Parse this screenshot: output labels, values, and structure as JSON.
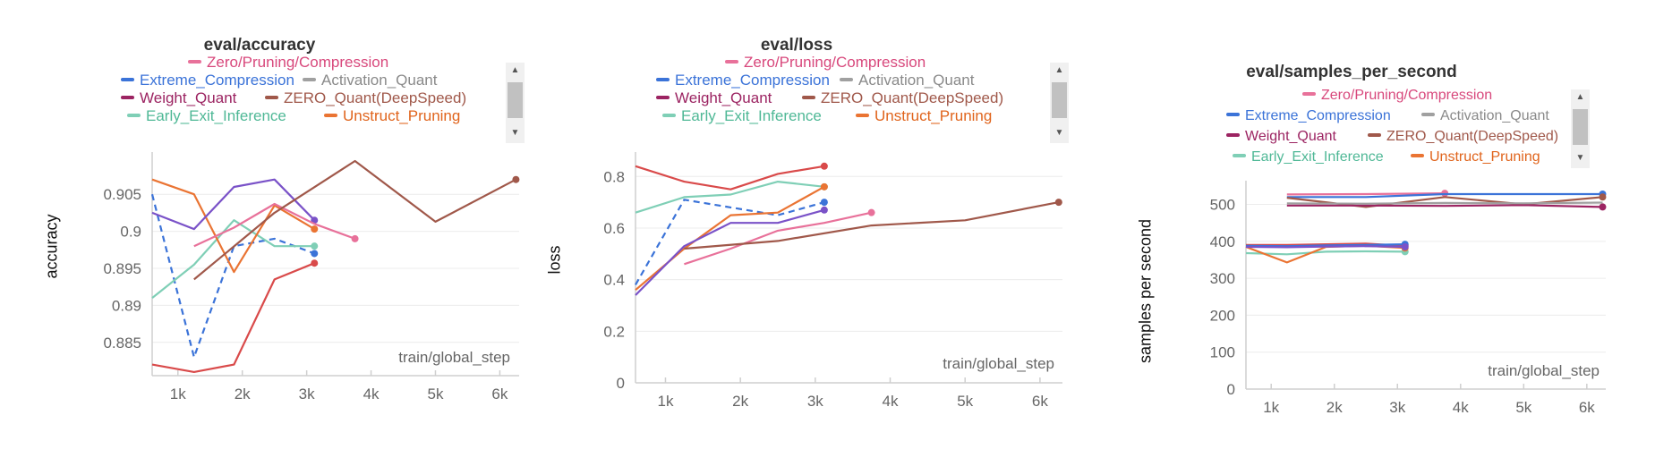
{
  "colors": {
    "Zero/Pruning/Compression": "#e8719a",
    "Extreme_Compression": "#3b73d8",
    "Activation_Quant": "#a0a0a0",
    "Weight_Quant": "#9c2462",
    "ZERO_Quant(DeepSpeed)": "#a0584a",
    "Early_Exit_Inference": "#7fcfb6",
    "Unstruct_Pruning": "#ea7433",
    "extra_red": "#d94a4a",
    "extra_purple": "#7a52c8"
  },
  "legend_series": [
    "Zero/Pruning/Compression",
    "Extreme_Compression",
    "Activation_Quant",
    "Weight_Quant",
    "ZERO_Quant(DeepSpeed)",
    "Early_Exit_Inference",
    "Unstruct_Pruning"
  ],
  "chart_data": [
    {
      "type": "line",
      "title": "eval/accuracy",
      "xlabel": "train/global_step",
      "ylabel": "accuracy",
      "xlim": [
        600,
        6300
      ],
      "ylim": [
        0.8805,
        0.9095
      ],
      "xticks": [
        {
          "v": 1000,
          "label": "1k"
        },
        {
          "v": 2000,
          "label": "2k"
        },
        {
          "v": 3000,
          "label": "3k"
        },
        {
          "v": 4000,
          "label": "4k"
        },
        {
          "v": 5000,
          "label": "5k"
        },
        {
          "v": 6000,
          "label": "6k"
        }
      ],
      "yticks": [
        {
          "v": 0.885,
          "label": "0.885"
        },
        {
          "v": 0.89,
          "label": "0.89"
        },
        {
          "v": 0.895,
          "label": "0.895"
        },
        {
          "v": 0.9,
          "label": "0.9"
        },
        {
          "v": 0.905,
          "label": "0.905"
        }
      ],
      "series": [
        {
          "color": "extra_red",
          "x": [
            600,
            1250,
            1870,
            2500,
            3120
          ],
          "values": [
            0.882,
            0.881,
            0.882,
            0.8935,
            0.8957
          ],
          "end_dot": true
        },
        {
          "color": "Extreme_Compression",
          "dashed": true,
          "x": [
            600,
            1250,
            1870,
            2500,
            3120
          ],
          "values": [
            0.905,
            0.883,
            0.898,
            0.899,
            0.897
          ],
          "end_dot": true
        },
        {
          "color": "Early_Exit_Inference",
          "x": [
            600,
            1250,
            1870,
            2500,
            3120
          ],
          "values": [
            0.891,
            0.8955,
            0.9015,
            0.898,
            0.898
          ],
          "end_dot": true
        },
        {
          "color": "Unstruct_Pruning",
          "x": [
            600,
            1250,
            1870,
            2500,
            3120
          ],
          "values": [
            0.907,
            0.905,
            0.8945,
            0.9035,
            0.9003
          ],
          "end_dot": true
        },
        {
          "color": "extra_purple",
          "x": [
            600,
            1250,
            1870,
            2500,
            3120
          ],
          "values": [
            0.9025,
            0.9003,
            0.906,
            0.907,
            0.9015
          ],
          "end_dot": true
        },
        {
          "color": "Zero/Pruning/Compression",
          "x": [
            1250,
            1870,
            2500,
            3120,
            3750
          ],
          "values": [
            0.898,
            0.9005,
            0.9037,
            0.901,
            0.899
          ],
          "end_dot": true
        },
        {
          "color": "ZERO_Quant(DeepSpeed)",
          "x": [
            1250,
            2500,
            3750,
            5000,
            6250
          ],
          "values": [
            0.8935,
            0.9025,
            0.9095,
            0.9013,
            0.907
          ],
          "end_dot": true
        }
      ]
    },
    {
      "type": "line",
      "title": "eval/loss",
      "xlabel": "train/global_step",
      "ylabel": "loss",
      "xlim": [
        600,
        6300
      ],
      "ylim": [
        0,
        0.86
      ],
      "xticks": [
        {
          "v": 1000,
          "label": "1k"
        },
        {
          "v": 2000,
          "label": "2k"
        },
        {
          "v": 3000,
          "label": "3k"
        },
        {
          "v": 4000,
          "label": "4k"
        },
        {
          "v": 5000,
          "label": "5k"
        },
        {
          "v": 6000,
          "label": "6k"
        }
      ],
      "yticks": [
        {
          "v": 0,
          "label": "0"
        },
        {
          "v": 0.2,
          "label": "0.2"
        },
        {
          "v": 0.4,
          "label": "0.4"
        },
        {
          "v": 0.6,
          "label": "0.6"
        },
        {
          "v": 0.8,
          "label": "0.8"
        }
      ],
      "series": [
        {
          "color": "extra_red",
          "x": [
            600,
            1250,
            1870,
            2500,
            3120
          ],
          "values": [
            0.84,
            0.78,
            0.75,
            0.81,
            0.84
          ],
          "end_dot": true
        },
        {
          "color": "Early_Exit_Inference",
          "x": [
            600,
            1250,
            1870,
            2500,
            3120
          ],
          "values": [
            0.66,
            0.72,
            0.73,
            0.78,
            0.76
          ],
          "end_dot": true
        },
        {
          "color": "Extreme_Compression",
          "dashed": true,
          "x": [
            600,
            1250,
            1870,
            2500,
            3120
          ],
          "values": [
            0.38,
            0.71,
            0.68,
            0.65,
            0.7
          ],
          "end_dot": true
        },
        {
          "color": "Unstruct_Pruning",
          "x": [
            600,
            1250,
            1870,
            2500,
            3120
          ],
          "values": [
            0.36,
            0.52,
            0.65,
            0.66,
            0.76
          ],
          "end_dot": true
        },
        {
          "color": "extra_purple",
          "x": [
            600,
            1250,
            1870,
            2500,
            3120
          ],
          "values": [
            0.34,
            0.53,
            0.62,
            0.62,
            0.67
          ],
          "end_dot": true
        },
        {
          "color": "Zero/Pruning/Compression",
          "x": [
            1250,
            1870,
            2500,
            3120,
            3750
          ],
          "values": [
            0.46,
            0.52,
            0.59,
            0.62,
            0.66
          ],
          "end_dot": true
        },
        {
          "color": "ZERO_Quant(DeepSpeed)",
          "x": [
            1250,
            2500,
            3750,
            5000,
            6250
          ],
          "values": [
            0.52,
            0.55,
            0.61,
            0.63,
            0.7
          ],
          "end_dot": true
        }
      ]
    },
    {
      "type": "line",
      "title": "eval/samples_per_second",
      "xlabel": "train/global_step",
      "ylabel": "samples  per  second",
      "xlim": [
        600,
        6300
      ],
      "ylim": [
        0,
        540
      ],
      "xticks": [
        {
          "v": 1000,
          "label": "1k"
        },
        {
          "v": 2000,
          "label": "2k"
        },
        {
          "v": 3000,
          "label": "3k"
        },
        {
          "v": 4000,
          "label": "4k"
        },
        {
          "v": 5000,
          "label": "5k"
        },
        {
          "v": 6000,
          "label": "6k"
        }
      ],
      "yticks": [
        {
          "v": 0,
          "label": "0"
        },
        {
          "v": 100,
          "label": "100"
        },
        {
          "v": 200,
          "label": "200"
        },
        {
          "v": 300,
          "label": "300"
        },
        {
          "v": 400,
          "label": "400"
        },
        {
          "v": 500,
          "label": "500"
        }
      ],
      "series": [
        {
          "color": "Early_Exit_Inference",
          "x": [
            600,
            1250,
            1870,
            2500,
            3120
          ],
          "values": [
            368,
            365,
            372,
            373,
            372
          ],
          "end_dot": true
        },
        {
          "color": "Unstruct_Pruning",
          "x": [
            600,
            1250,
            1870,
            2500,
            3120
          ],
          "values": [
            385,
            343,
            385,
            388,
            382
          ],
          "end_dot": true
        },
        {
          "color": "extra_red",
          "x": [
            600,
            1250,
            1870,
            2500,
            3120
          ],
          "values": [
            390,
            390,
            392,
            394,
            388
          ],
          "end_dot": true
        },
        {
          "color": "Extreme_Compression",
          "x": [
            600,
            1250,
            1870,
            2500,
            3120
          ],
          "values": [
            388,
            387,
            389,
            390,
            392
          ],
          "end_dot": true
        },
        {
          "color": "extra_purple",
          "x": [
            600,
            1250,
            1870,
            2500,
            3120
          ],
          "values": [
            385,
            384,
            386,
            387,
            385
          ],
          "end_dot": true
        },
        {
          "color": "Zero/Pruning/Compression",
          "x": [
            1250,
            2500,
            3750
          ],
          "values": [
            527,
            528,
            530
          ],
          "end_dot": true
        },
        {
          "color": "Extreme_Compression",
          "x": [
            1250,
            2500,
            3750,
            5000,
            6250
          ],
          "values": [
            520,
            520,
            528,
            528,
            528
          ],
          "end_dot": true
        },
        {
          "color": "ZERO_Quant(DeepSpeed)",
          "x": [
            1250,
            2500,
            3750,
            5000,
            6250
          ],
          "values": [
            518,
            493,
            520,
            500,
            520
          ],
          "end_dot": true
        },
        {
          "color": "Weight_Quant",
          "x": [
            1250,
            2500,
            3750,
            5000,
            6250
          ],
          "values": [
            497,
            497,
            496,
            498,
            493
          ],
          "end_dot": true
        },
        {
          "color": "Activation_Quant",
          "x": [
            1250,
            2500,
            3750,
            5000,
            6250
          ],
          "values": [
            503,
            502,
            504,
            503,
            505
          ],
          "end_dot": false
        }
      ]
    }
  ]
}
